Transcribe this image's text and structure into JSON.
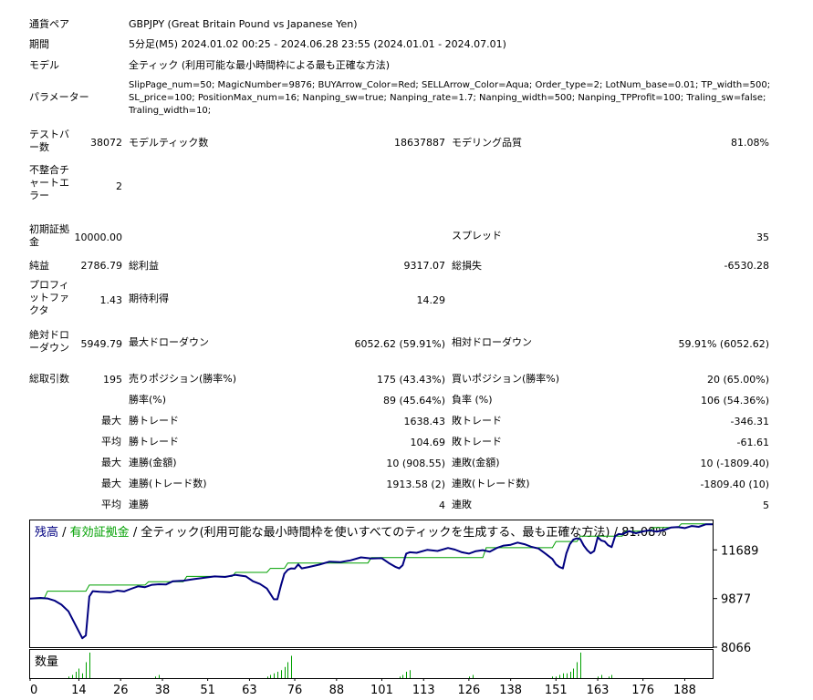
{
  "report": {
    "symbol": {
      "label": "通貨ペア",
      "value": "GBPJPY (Great Britain Pound vs Japanese Yen)"
    },
    "period": {
      "label": "期間",
      "value": "5分足(M5) 2024.01.02 00:25 - 2024.06.28 23:55 (2024.01.01 - 2024.07.01)"
    },
    "model": {
      "label": "モデル",
      "value": "全ティック (利用可能な最小時間枠による最も正確な方法)"
    },
    "parameters": {
      "label": "パラメーター",
      "line1": "SlipPage_num=50; MagicNumber=9876; BUYArrow_Color=Red; SELLArrow_Color=Aqua; Order_type=2; LotNum_base=0.01; TP_width=500;",
      "line2": "SL_price=100; PositionMax_num=16; Nanping_sw=true; Nanping_rate=1.7; Nanping_width=500; Nanping_TPProfit=100; Traling_sw=false;",
      "line3": "Traling_width=10;"
    },
    "bars": {
      "label": "テストバー数",
      "value": "38072"
    },
    "ticks": {
      "label": "モデルティック数",
      "value": "18637887"
    },
    "quality": {
      "label": "モデリング品質",
      "value": "81.08%"
    },
    "mismatch": {
      "label": "不整合チャートエラー",
      "value": "2"
    },
    "deposit": {
      "label": "初期証拠金",
      "value": "10000.00"
    },
    "spread": {
      "label": "スプレッド",
      "value": "35"
    },
    "net_profit": {
      "label": "純益",
      "value": "2786.79"
    },
    "gross_profit": {
      "label": "総利益",
      "value": "9317.07"
    },
    "gross_loss": {
      "label": "総損失",
      "value": "-6530.28"
    },
    "profit_factor": {
      "label": "プロフィットファクタ",
      "value": "1.43"
    },
    "expected_payoff": {
      "label": "期待利得",
      "value": "14.29"
    },
    "abs_dd": {
      "label": "絶対ドローダウン",
      "value": "5949.79"
    },
    "max_dd": {
      "label": "最大ドローダウン",
      "value": "6052.62 (59.91%)"
    },
    "rel_dd": {
      "label": "相対ドローダウン",
      "value": "59.91% (6052.62)"
    },
    "total_trades": {
      "label": "総取引数",
      "value": "195"
    },
    "short_pos": {
      "label": "売りポジション(勝率%)",
      "value": "175 (43.43%)"
    },
    "long_pos": {
      "label": "買いポジション(勝率%)",
      "value": "20 (65.00%)"
    },
    "win_rate": {
      "label": "勝率(%)",
      "value": "89 (45.64%)"
    },
    "loss_rate": {
      "label": "負率 (%)",
      "value": "106 (54.36%)"
    },
    "max_label": "最大",
    "avg_label": "平均",
    "largest_win": {
      "label": "勝トレード",
      "value": "1638.43"
    },
    "largest_loss": {
      "label": "敗トレード",
      "value": "-346.31"
    },
    "avg_win": {
      "label": "勝トレード",
      "value": "104.69"
    },
    "avg_loss": {
      "label": "敗トレード",
      "value": "-61.61"
    },
    "max_cons_wins_money": {
      "label": "連勝(金額)",
      "value": "10 (908.55)"
    },
    "max_cons_losses_money": {
      "label": "連敗(金額)",
      "value": "10 (-1809.40)"
    },
    "max_cons_wins_count": {
      "label": "連勝(トレード数)",
      "value": "1913.58 (2)"
    },
    "max_cons_losses_count": {
      "label": "連敗(トレード数)",
      "value": "-1809.40 (10)"
    },
    "avg_cons_wins": {
      "label": "連勝",
      "value": "4"
    },
    "avg_cons_losses": {
      "label": "連敗",
      "value": "5"
    }
  },
  "chart_data": {
    "type": "line",
    "title_parts": {
      "balance": "残高",
      "sep1": " / ",
      "equity": "有効証拠金",
      "sep2": " / ",
      "rest": "全ティック(利用可能な最小時間枠を使いすべてのティックを生成する、最も正確な方法) / 81.08%"
    },
    "volume_label": "数量",
    "y_tick_labels": [
      "11689",
      "9877",
      "8066"
    ],
    "y_ticks": [
      11689,
      9877,
      8066
    ],
    "x_tick_labels": [
      "0",
      "14",
      "26",
      "38",
      "51",
      "63",
      "76",
      "88",
      "101",
      "113",
      "126",
      "138",
      "151",
      "163",
      "176",
      "188"
    ],
    "x_ticks": [
      0,
      14,
      26,
      38,
      51,
      63,
      76,
      88,
      101,
      113,
      126,
      138,
      151,
      163,
      176,
      188
    ],
    "ylim": [
      8066,
      12786
    ],
    "xlim": [
      0,
      196
    ],
    "colors": {
      "balance": "#000080",
      "equity": "#00a000",
      "volume": "#00a000",
      "axis": "#000000",
      "title_balance": "#000080",
      "title_equity": "#00a000"
    },
    "series": [
      {
        "name": "残高",
        "x": [
          0,
          3,
          5,
          7,
          9,
          11,
          12,
          13,
          14,
          15,
          16,
          17,
          18,
          20,
          23,
          25,
          27,
          29,
          31,
          33,
          35,
          37,
          39,
          41,
          44,
          47,
          50,
          53,
          56,
          59,
          62,
          64,
          66,
          68,
          69,
          70,
          71,
          72,
          73,
          74,
          75,
          76,
          77,
          78,
          80,
          83,
          86,
          89,
          92,
          95,
          98,
          101,
          103,
          105,
          106,
          107,
          108,
          109,
          111,
          114,
          117,
          120,
          122,
          124,
          126,
          128,
          130,
          132,
          134,
          136,
          138,
          140,
          142,
          144,
          146,
          148,
          150,
          151,
          152,
          153,
          154,
          155,
          156,
          157,
          158,
          159,
          160,
          161,
          162,
          163,
          164,
          165,
          166,
          167,
          168,
          169,
          170,
          172,
          174,
          176,
          178,
          180,
          182,
          184,
          186,
          188,
          190,
          192,
          194,
          196
        ],
        "y": [
          9877,
          9900,
          9880,
          9800,
          9650,
          9400,
          9150,
          8900,
          8650,
          8400,
          8500,
          9950,
          10150,
          10130,
          10110,
          10170,
          10140,
          10240,
          10330,
          10300,
          10390,
          10410,
          10400,
          10520,
          10540,
          10600,
          10650,
          10700,
          10680,
          10760,
          10700,
          10520,
          10420,
          10250,
          10050,
          9850,
          9850,
          10350,
          10800,
          10950,
          11000,
          10990,
          11150,
          11000,
          11050,
          11140,
          11250,
          11230,
          11300,
          11410,
          11370,
          11380,
          11200,
          11050,
          11000,
          11120,
          11550,
          11600,
          11580,
          11690,
          11650,
          11760,
          11700,
          11600,
          11550,
          11640,
          11680,
          11620,
          11760,
          11850,
          11880,
          11960,
          11900,
          11800,
          11740,
          11550,
          11350,
          11150,
          11050,
          11000,
          11560,
          11900,
          12070,
          12120,
          12090,
          11850,
          11680,
          11560,
          11650,
          12160,
          12040,
          12000,
          11860,
          11790,
          12200,
          12280,
          12270,
          12390,
          12310,
          12380,
          12420,
          12370,
          12430,
          12520,
          12540,
          12500,
          12580,
          12550,
          12640,
          12640
        ]
      },
      {
        "name": "有効証拠金",
        "x": [
          0,
          4,
          5,
          16,
          17,
          33,
          34,
          44,
          45,
          58,
          59,
          68,
          69,
          73,
          74,
          97,
          98,
          130,
          131,
          150,
          151,
          157,
          158,
          170,
          171,
          178,
          179,
          186,
          187,
          196
        ],
        "y": [
          9877,
          9877,
          10150,
          10150,
          10380,
          10380,
          10500,
          10500,
          10700,
          10700,
          10850,
          10850,
          11000,
          11000,
          11200,
          11200,
          11400,
          11400,
          11770,
          11770,
          12000,
          12000,
          12200,
          12200,
          12390,
          12390,
          12520,
          12520,
          12660,
          12660
        ]
      }
    ],
    "volume": {
      "x": [
        11,
        12,
        13,
        14,
        15,
        16,
        17,
        36,
        37,
        68,
        69,
        70,
        71,
        72,
        73,
        74,
        75,
        106,
        107,
        108,
        109,
        126,
        127,
        150,
        151,
        152,
        153,
        154,
        155,
        156,
        157,
        158,
        163,
        164,
        166,
        167
      ],
      "h": [
        1,
        2,
        4,
        6,
        3,
        10,
        16,
        1,
        2,
        1,
        2,
        3,
        4,
        5,
        7,
        10,
        14,
        1,
        2,
        4,
        5,
        1,
        2,
        1,
        1,
        2,
        3,
        3,
        4,
        6,
        10,
        16,
        1,
        2,
        1,
        2
      ]
    }
  }
}
